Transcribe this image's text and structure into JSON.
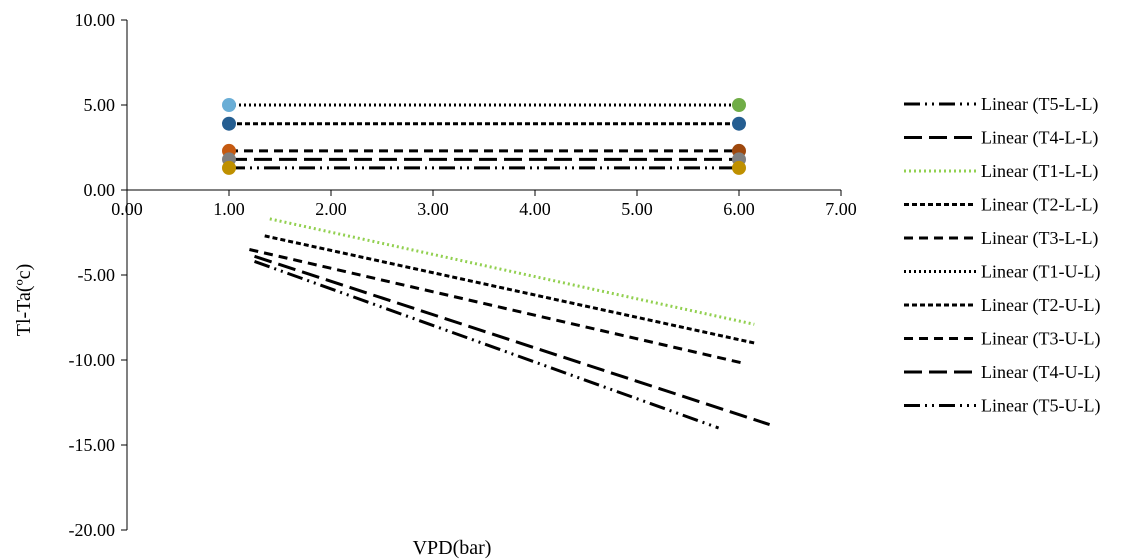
{
  "chart_data": {
    "type": "scatter",
    "title": "",
    "xlabel": "VPD(bar)",
    "ylabel": "Tl-Ta(ºc)",
    "xlim": [
      0,
      7
    ],
    "ylim": [
      -20,
      10
    ],
    "x_ticks": [
      "0.00",
      "1.00",
      "2.00",
      "3.00",
      "4.00",
      "5.00",
      "6.00",
      "7.00"
    ],
    "y_ticks": [
      "10.00",
      "5.00",
      "0.00",
      "-5.00",
      "-10.00",
      "-15.00",
      "-20.00"
    ],
    "grid": false,
    "legend_position": "right",
    "points": [
      {
        "x": 1,
        "y": 5.0,
        "color": "#6aaed6"
      },
      {
        "x": 6,
        "y": 5.0,
        "color": "#70ad47"
      },
      {
        "x": 1,
        "y": 3.9,
        "color": "#255e91"
      },
      {
        "x": 6,
        "y": 3.9,
        "color": "#255e91"
      },
      {
        "x": 1,
        "y": 2.3,
        "color": "#c55a11"
      },
      {
        "x": 6,
        "y": 2.3,
        "color": "#9e480e"
      },
      {
        "x": 1,
        "y": 1.8,
        "color": "#7f7f7f"
      },
      {
        "x": 6,
        "y": 1.8,
        "color": "#7f7f7f"
      },
      {
        "x": 1,
        "y": 1.3,
        "color": "#bf9000"
      },
      {
        "x": 6,
        "y": 1.3,
        "color": "#bf9000"
      }
    ],
    "series": [
      {
        "name": "Linear (T5-L-L)",
        "x": [
          1.25,
          5.8
        ],
        "y": [
          -4.2,
          -14.0
        ],
        "color": "#000000",
        "dash": "16 5 2 5 2 5"
      },
      {
        "name": "Linear (T4-L-L)",
        "x": [
          1.25,
          6.3
        ],
        "y": [
          -3.9,
          -13.8
        ],
        "color": "#000000",
        "dash": "18 7"
      },
      {
        "name": "Linear (T1-L-L)",
        "x": [
          1.4,
          6.15
        ],
        "y": [
          -1.7,
          -7.9
        ],
        "color": "#92d050",
        "dash": "2 3"
      },
      {
        "name": "Linear (T2-L-L)",
        "x": [
          1.35,
          6.15
        ],
        "y": [
          -2.7,
          -9.0
        ],
        "color": "#000000",
        "dash": "5 3"
      },
      {
        "name": "Linear (T3-L-L)",
        "x": [
          1.2,
          6.05
        ],
        "y": [
          -3.5,
          -10.2
        ],
        "color": "#000000",
        "dash": "9 6"
      },
      {
        "name": "Linear (T1-U-L)",
        "x": [
          1,
          6
        ],
        "y": [
          5.0,
          5.0
        ],
        "color": "#000000",
        "dash": "2 3"
      },
      {
        "name": "Linear (T2-U-L)",
        "x": [
          1,
          6
        ],
        "y": [
          3.9,
          3.9
        ],
        "color": "#000000",
        "dash": "5 3"
      },
      {
        "name": "Linear (T3-U-L)",
        "x": [
          1,
          6
        ],
        "y": [
          2.3,
          2.3
        ],
        "color": "#000000",
        "dash": "9 6"
      },
      {
        "name": "Linear (T4-U-L)",
        "x": [
          1,
          6
        ],
        "y": [
          1.8,
          1.8
        ],
        "color": "#000000",
        "dash": "18 7"
      },
      {
        "name": "Linear (T5-U-L)",
        "x": [
          1,
          6
        ],
        "y": [
          1.3,
          1.3
        ],
        "color": "#000000",
        "dash": "16 5 2 5 2 5"
      }
    ]
  }
}
